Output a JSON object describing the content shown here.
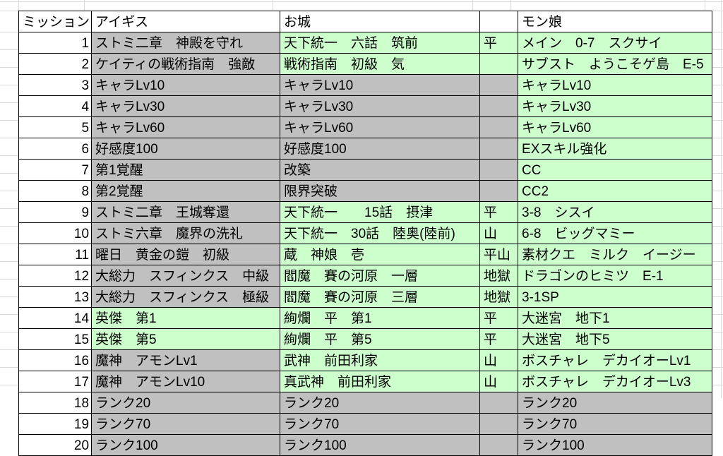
{
  "colors": {
    "green": "#ccffcc",
    "gray": "#c0c0c0",
    "border": "#000000",
    "gridline": "#d9d9d9"
  },
  "table": {
    "headers": [
      {
        "label": "ミッション"
      },
      {
        "label": "アイギス"
      },
      {
        "label": "お城"
      },
      {
        "label": ""
      },
      {
        "label": "モン娘"
      }
    ],
    "rows": [
      {
        "num": "1",
        "aigis": "ストミ二章　神殿を守れ",
        "oshiro": "天下統一　六話　筑前",
        "terrain": "平",
        "monmusu": "メイン　0-7　スクサイ",
        "fills": [
          "gray",
          "green",
          "green",
          "green"
        ]
      },
      {
        "num": "2",
        "aigis": "ケイティの戦術指南　強敵",
        "oshiro": "戦術指南　初級　気",
        "terrain": "",
        "monmusu": "サブスト　ようこそゲ島　E-5",
        "fills": [
          "gray",
          "green",
          "green",
          "green"
        ]
      },
      {
        "num": "3",
        "aigis": "キャラLv10",
        "oshiro": "キャラLv10",
        "terrain": "",
        "monmusu": "キャラLv10",
        "fills": [
          "gray",
          "gray",
          "gray",
          "green"
        ]
      },
      {
        "num": "4",
        "aigis": "キャラLv30",
        "oshiro": "キャラLv30",
        "terrain": "",
        "monmusu": "キャラLv30",
        "fills": [
          "gray",
          "gray",
          "gray",
          "green"
        ]
      },
      {
        "num": "5",
        "aigis": "キャラLv60",
        "oshiro": "キャラLv60",
        "terrain": "",
        "monmusu": "キャラLv60",
        "fills": [
          "gray",
          "gray",
          "gray",
          "green"
        ]
      },
      {
        "num": "6",
        "aigis": "好感度100",
        "oshiro": "好感度100",
        "terrain": "",
        "monmusu": "EXスキル強化",
        "fills": [
          "gray",
          "gray",
          "gray",
          "green"
        ]
      },
      {
        "num": "7",
        "aigis": "第1覚醒",
        "oshiro": "改築",
        "terrain": "",
        "monmusu": "CC",
        "fills": [
          "gray",
          "gray",
          "gray",
          "green"
        ]
      },
      {
        "num": "8",
        "aigis": "第2覚醒",
        "oshiro": "限界突破",
        "terrain": "",
        "monmusu": "CC2",
        "fills": [
          "gray",
          "gray",
          "gray",
          "green"
        ]
      },
      {
        "num": "9",
        "aigis": "ストミ二章　王城奪還",
        "oshiro": "天下統一　　15話　摂津",
        "terrain": "平",
        "monmusu": "3-8　シスイ",
        "fills": [
          "gray",
          "green",
          "green",
          "green"
        ]
      },
      {
        "num": "10",
        "aigis": "ストミ六章　魔界の洗礼",
        "oshiro": "天下統一　30話　陸奥(陸前)",
        "terrain": "山",
        "monmusu": "6-8　ビッグマミー",
        "fills": [
          "gray",
          "green",
          "green",
          "green"
        ]
      },
      {
        "num": "11",
        "aigis": "曜日　黄金の鎧　初級",
        "oshiro": "蔵　神娘　壱",
        "terrain": "平山",
        "monmusu": "素材クエ　ミルク　イージー",
        "fills": [
          "gray",
          "green",
          "green",
          "green"
        ]
      },
      {
        "num": "12",
        "aigis": "大総力　スフィンクス　中級",
        "oshiro": "閻魔　賽の河原　一層",
        "terrain": "地獄",
        "monmusu": "ドラゴンのヒミツ　E-1",
        "fills": [
          "gray",
          "green",
          "green",
          "green"
        ]
      },
      {
        "num": "13",
        "aigis": "大総力　スフィンクス　極級",
        "oshiro": "閻魔　賽の河原　三層",
        "terrain": "地獄",
        "monmusu": "3-1SP",
        "fills": [
          "gray",
          "green",
          "green",
          "green"
        ]
      },
      {
        "num": "14",
        "aigis": "英傑　第1",
        "oshiro": "絢爛　平　第1",
        "terrain": "平",
        "monmusu": "大迷宮　地下1",
        "fills": [
          "green",
          "green",
          "green",
          "green"
        ]
      },
      {
        "num": "15",
        "aigis": "英傑　第5",
        "oshiro": "絢爛　平　第5",
        "terrain": "平",
        "monmusu": "大迷宮　地下5",
        "fills": [
          "green",
          "green",
          "green",
          "green"
        ]
      },
      {
        "num": "16",
        "aigis": "魔神　アモンLv1",
        "oshiro": "武神　前田利家",
        "terrain": "山",
        "monmusu": "ボスチャレ　デカイオーLv1",
        "fills": [
          "gray",
          "green",
          "green",
          "green"
        ]
      },
      {
        "num": "17",
        "aigis": "魔神　アモンLv10",
        "oshiro": "真武神　前田利家",
        "terrain": "山",
        "monmusu": "ボスチャレ　デカイオーLv3",
        "fills": [
          "gray",
          "green",
          "green",
          "green"
        ]
      },
      {
        "num": "18",
        "aigis": "ランク20",
        "oshiro": "ランク20",
        "terrain": "",
        "monmusu": "ランク20",
        "fills": [
          "gray",
          "gray",
          "gray",
          "gray"
        ]
      },
      {
        "num": "19",
        "aigis": "ランク70",
        "oshiro": "ランク70",
        "terrain": "",
        "monmusu": "ランク70",
        "fills": [
          "gray",
          "gray",
          "gray",
          "gray"
        ]
      },
      {
        "num": "20",
        "aigis": "ランク100",
        "oshiro": "ランク100",
        "terrain": "",
        "monmusu": "ランク100",
        "fills": [
          "gray",
          "gray",
          "gray",
          "gray"
        ]
      }
    ]
  }
}
